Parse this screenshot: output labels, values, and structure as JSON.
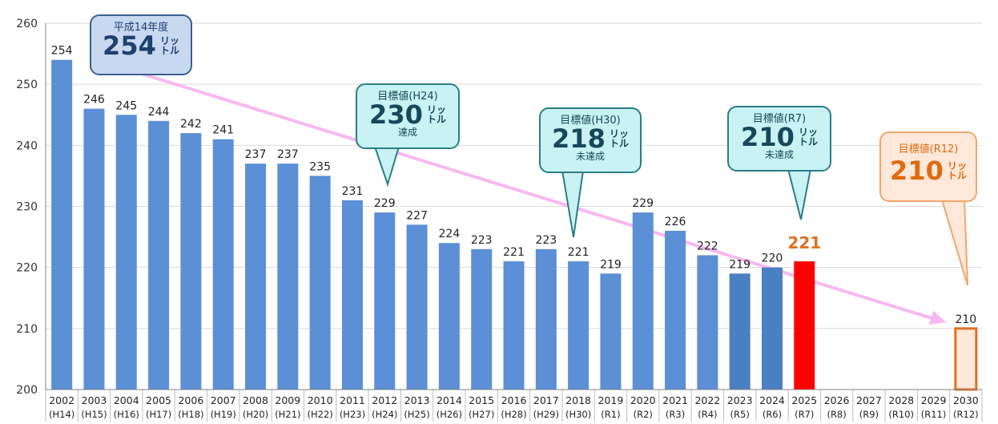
{
  "chart_data": {
    "type": "bar",
    "categories": [
      "2002",
      "2003",
      "2004",
      "2005",
      "2006",
      "2007",
      "2008",
      "2009",
      "2010",
      "2011",
      "2012",
      "2013",
      "2014",
      "2015",
      "2016",
      "2017",
      "2018",
      "2019",
      "2020",
      "2021",
      "2022",
      "2023",
      "2024",
      "2025",
      "2026",
      "2027",
      "2028",
      "2029",
      "2030"
    ],
    "category_sublabels": [
      "(H14)",
      "(H15)",
      "(H16)",
      "(H17)",
      "(H18)",
      "(H19)",
      "(H20)",
      "(H21)",
      "(H22)",
      "(H23)",
      "(H24)",
      "(H25)",
      "(H26)",
      "(H27)",
      "(H28)",
      "(H29)",
      "(H30)",
      "(R1)",
      "(R2)",
      "(R3)",
      "(R4)",
      "(R5)",
      "(R6)",
      "(R7)",
      "(R8)",
      "(R9)",
      "(R10)",
      "(R11)",
      "(R12)"
    ],
    "values": [
      254,
      246,
      245,
      244,
      242,
      241,
      237,
      237,
      235,
      231,
      229,
      227,
      224,
      223,
      221,
      223,
      221,
      219,
      229,
      226,
      222,
      219,
      220,
      221,
      null,
      null,
      null,
      null,
      210
    ],
    "data_labels": [
      "254",
      "246",
      "245",
      "244",
      "242",
      "241",
      "237",
      "237",
      "235",
      "231",
      "229",
      "227",
      "224",
      "223",
      "221",
      "223",
      "221",
      "219",
      "229",
      "226",
      "222",
      "219",
      "220",
      "221",
      "",
      "",
      "",
      "",
      "210"
    ],
    "ylim": [
      200,
      260
    ],
    "yticks": [
      200,
      210,
      220,
      230,
      240,
      250,
      260
    ],
    "grid": true,
    "colors": {
      "bar": "#5b8fd6",
      "bar_dark": "#4a7fc1",
      "bar_highlight": "#ff0000",
      "target_fill": "#fde8da",
      "target_stroke": "#e07020",
      "highlight_label": "#e07020",
      "arrow": "#f7b8f0"
    },
    "bar_styles": [
      "normal",
      "normal",
      "normal",
      "normal",
      "normal",
      "normal",
      "normal",
      "normal",
      "normal",
      "normal",
      "normal",
      "normal",
      "normal",
      "normal",
      "normal",
      "normal",
      "normal",
      "normal",
      "normal",
      "normal",
      "normal",
      "dark",
      "dark",
      "highlight",
      "none",
      "none",
      "none",
      "none",
      "target"
    ],
    "trend_arrow": {
      "from": [
        2004,
        252.5
      ],
      "to": [
        2029.4,
        211.0
      ]
    }
  },
  "callouts": [
    {
      "id": "h14",
      "top": "平成14年度",
      "big": "254",
      "unit": "リッ トル",
      "sub": ""
    },
    {
      "id": "h24",
      "top": "目標値(H24)",
      "big": "230",
      "unit": "リッ トル",
      "sub": "達成"
    },
    {
      "id": "h30",
      "top": "目標値(H30)",
      "big": "218",
      "unit": "リッ トル",
      "sub": "未達成"
    },
    {
      "id": "r7",
      "top": "目標値(R7)",
      "big": "210",
      "unit": "リッ トル",
      "sub": "未達成"
    },
    {
      "id": "r12",
      "top": "目標値(R12)",
      "big": "210",
      "unit": "リッ トル",
      "sub": ""
    }
  ]
}
